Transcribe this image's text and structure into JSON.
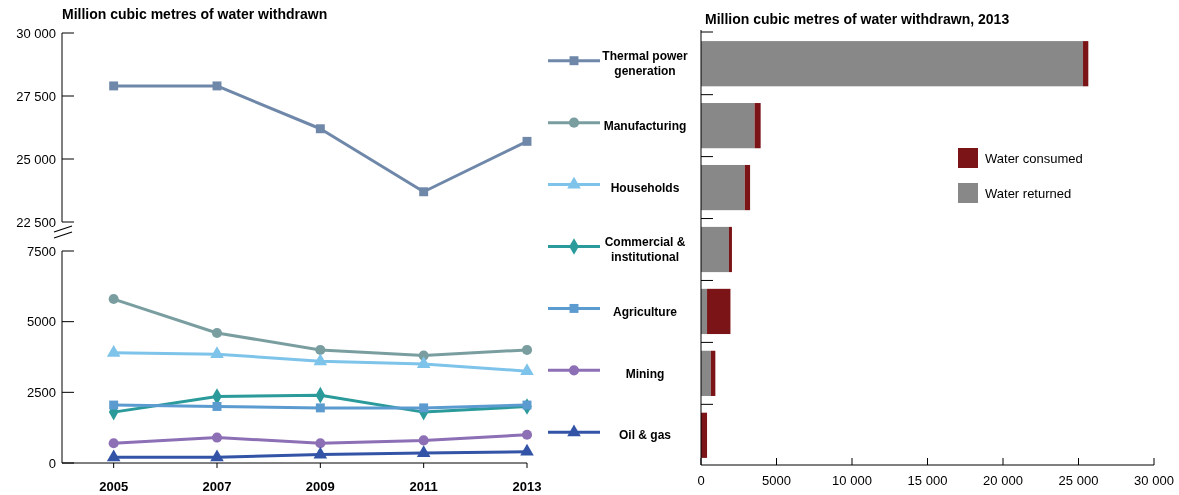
{
  "chart_data": [
    {
      "type": "line",
      "title": "Million cubic metres of water withdrawn",
      "x": [
        2005,
        2007,
        2009,
        2011,
        2013
      ],
      "xlim": [
        2004,
        2013
      ],
      "ylim": [
        22500,
        30000
      ],
      "yticks": [
        {
          "value": 22500,
          "label": "22 500"
        },
        {
          "value": 25000,
          "label": "25 000"
        },
        {
          "value": 27500,
          "label": "27 500"
        },
        {
          "value": 30000,
          "label": "30 000"
        }
      ],
      "tick_labels": "y",
      "series": [
        {
          "color": "#6f88aa",
          "marker": "square",
          "values": [
            27900,
            27900,
            26200,
            23700,
            25700
          ]
        }
      ]
    },
    {
      "type": "line",
      "x": [
        2005,
        2007,
        2009,
        2011,
        2013
      ],
      "xlim": [
        2004,
        2013
      ],
      "xticks": [
        2005,
        2007,
        2009,
        2011,
        2013
      ],
      "ylim": [
        0,
        7500
      ],
      "yticks": [
        0,
        2500,
        5000,
        7500
      ],
      "series": [
        {
          "color": "#7a9ea0",
          "marker": "circle",
          "values": [
            5800,
            4600,
            4000,
            3800,
            4000
          ]
        },
        {
          "color": "#7ec3ea",
          "marker": "triangle",
          "values": [
            3900,
            3850,
            3600,
            3500,
            3250
          ]
        },
        {
          "color": "#2a9a9a",
          "marker": "diamond",
          "values": [
            1800,
            2350,
            2400,
            1800,
            2000
          ]
        },
        {
          "color": "#5b9bd0",
          "marker": "square",
          "values": [
            2050,
            2000,
            1950,
            1950,
            2050
          ]
        },
        {
          "color": "#8c6fb5",
          "marker": "circle",
          "values": [
            700,
            900,
            700,
            800,
            1000
          ]
        },
        {
          "color": "#3354a6",
          "marker": "triangle",
          "values": [
            200,
            200,
            300,
            350,
            400
          ]
        }
      ]
    },
    {
      "type": "bar",
      "title": "Million cubic metres of water withdrawn, 2013",
      "orientation": "horizontal",
      "stacked": true,
      "categories": [
        "Thermal power generation",
        "Manufacturing",
        "Households",
        "Commercial & institutional",
        "Agriculture",
        "Mining",
        "Oil & gas"
      ],
      "xlim": [
        0,
        30000
      ],
      "xticks": [
        0,
        5000,
        {
          "value": 10000,
          "label": "10 000"
        },
        {
          "value": 15000,
          "label": "15 000"
        },
        {
          "value": 20000,
          "label": "20 000"
        },
        {
          "value": 25000,
          "label": "25 000"
        },
        {
          "value": 30000,
          "label": "30 000"
        }
      ],
      "legend": "right",
      "series": [
        {
          "name": "Water returned",
          "color": "#888888",
          "values": [
            25300,
            3550,
            2900,
            1850,
            400,
            650,
            0
          ]
        },
        {
          "name": "Water consumed",
          "color": "#7a1416",
          "values": [
            350,
            400,
            350,
            200,
            1550,
            300,
            400
          ]
        }
      ]
    }
  ]
}
